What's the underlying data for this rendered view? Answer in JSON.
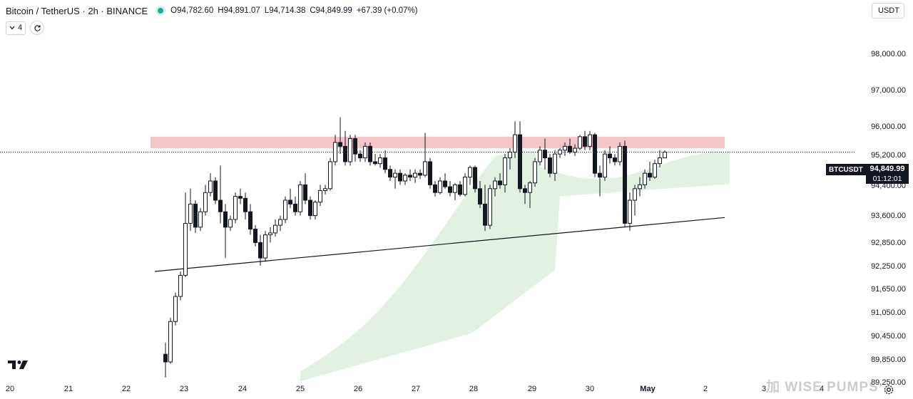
{
  "header": {
    "symbol_title": "Bitcoin / TetherUS · 2h · BINANCE",
    "ohlc": {
      "open_label": "O",
      "open": "94,782.60",
      "high_label": "H",
      "high": "94,891.07",
      "low_label": "L",
      "low": "94,714.38",
      "close_label": "C",
      "close": "94,849.99",
      "change": "+67.39 (+0.07%)"
    },
    "indicator_count": "4",
    "currency": "USDT"
  },
  "price_axis": {
    "ticks": [
      "98,000.00",
      "97,000.00",
      "96,000.00",
      "95,200.00",
      "94,400.00",
      "93,600.00",
      "92,850.00",
      "92,250.00",
      "91,650.00",
      "91,050.00",
      "90,450.00",
      "89,850.00",
      "89,250.00"
    ],
    "last_symbol": "BTCUSDT",
    "last_price": "94,849.99",
    "countdown": "01:12:01"
  },
  "time_axis": {
    "ticks": [
      "20",
      "21",
      "22",
      "23",
      "24",
      "25",
      "26",
      "27",
      "28",
      "29",
      "30",
      "May",
      "2",
      "3",
      "4"
    ]
  },
  "watermark": "加 WISE PUMPS",
  "colors": {
    "up": "#ffffff",
    "down": "#131722",
    "resistance_zone": "#f4c6c8",
    "cloud": "#e3f1e2",
    "trendline": "#131722"
  },
  "icons": {
    "logo": "tradingview-logo-icon",
    "settings": "gear-icon",
    "refresh": "refresh-icon",
    "collapse": "chevron-down-icon"
  },
  "chart_data": {
    "type": "candlestick",
    "symbol": "BTCUSDT",
    "interval": "2h",
    "ylim": [
      88900,
      98800
    ],
    "annotations": {
      "resistance_zone": [
        94950,
        95250
      ],
      "ascending_trendline": [
        91750,
        93150
      ]
    },
    "candles": [
      [
        89600,
        89900,
        89000,
        89400
      ],
      [
        89400,
        90550,
        89350,
        90450
      ],
      [
        90450,
        91200,
        90350,
        91100
      ],
      [
        91100,
        91750,
        91000,
        91650
      ],
      [
        91650,
        93800,
        91600,
        93000
      ],
      [
        93000,
        93900,
        92800,
        93500
      ],
      [
        93500,
        93600,
        92750,
        92900
      ],
      [
        92900,
        93400,
        92800,
        93300
      ],
      [
        93300,
        94000,
        93200,
        93800
      ],
      [
        93800,
        94300,
        93700,
        94100
      ],
      [
        94100,
        94200,
        93500,
        93600
      ],
      [
        93600,
        94500,
        93000,
        93300
      ],
      [
        93300,
        93500,
        92100,
        92900
      ],
      [
        92900,
        93200,
        92800,
        93100
      ],
      [
        93100,
        93800,
        93000,
        93700
      ],
      [
        93700,
        93900,
        93500,
        93650
      ],
      [
        93650,
        93800,
        93100,
        93300
      ],
      [
        93300,
        93500,
        92700,
        92850
      ],
      [
        92850,
        92950,
        92400,
        92500
      ],
      [
        92500,
        92700,
        91900,
        92100
      ],
      [
        92100,
        92800,
        92000,
        92700
      ],
      [
        92700,
        92900,
        92500,
        92750
      ],
      [
        92750,
        93100,
        92650,
        92950
      ],
      [
        92950,
        93200,
        92800,
        93100
      ],
      [
        93100,
        93700,
        93000,
        93600
      ],
      [
        93600,
        93900,
        93400,
        93500
      ],
      [
        93500,
        93700,
        93200,
        93300
      ],
      [
        93300,
        94100,
        93200,
        94000
      ],
      [
        94000,
        94300,
        93500,
        93600
      ],
      [
        93600,
        93700,
        93100,
        93200
      ],
      [
        93200,
        93600,
        93100,
        93550
      ],
      [
        93550,
        94000,
        93450,
        93850
      ],
      [
        93850,
        94000,
        93750,
        93900
      ],
      [
        93900,
        94700,
        93850,
        94600
      ],
      [
        94600,
        95300,
        94500,
        95100
      ],
      [
        95100,
        95750,
        94800,
        95000
      ],
      [
        95000,
        95400,
        94500,
        94600
      ],
      [
        94600,
        95300,
        94500,
        95200
      ],
      [
        95200,
        95300,
        94600,
        94800
      ],
      [
        94800,
        94900,
        94600,
        94700
      ],
      [
        94700,
        95100,
        94600,
        95000
      ],
      [
        95000,
        95100,
        94500,
        94600
      ],
      [
        94600,
        94800,
        94500,
        94550
      ],
      [
        94550,
        94800,
        94450,
        94700
      ],
      [
        94700,
        94900,
        94300,
        94400
      ],
      [
        94400,
        94500,
        94100,
        94200
      ],
      [
        94200,
        94400,
        93900,
        94300
      ],
      [
        94300,
        94400,
        94000,
        94100
      ],
      [
        94100,
        94300,
        94000,
        94250
      ],
      [
        94250,
        94400,
        94100,
        94200
      ],
      [
        94200,
        94400,
        94050,
        94300
      ],
      [
        94300,
        94400,
        94150,
        94250
      ],
      [
        94250,
        95350,
        94200,
        94600
      ],
      [
        94600,
        94700,
        93900,
        94000
      ],
      [
        94000,
        94100,
        93700,
        93800
      ],
      [
        93800,
        94200,
        93750,
        94100
      ],
      [
        94100,
        94300,
        93900,
        93950
      ],
      [
        93950,
        94100,
        93700,
        93800
      ],
      [
        93800,
        94050,
        93600,
        94000
      ],
      [
        94000,
        94100,
        93700,
        93750
      ],
      [
        93750,
        94300,
        93700,
        94200
      ],
      [
        94200,
        94500,
        94000,
        94450
      ],
      [
        94450,
        94500,
        93800,
        93900
      ],
      [
        93900,
        94100,
        93400,
        93500
      ],
      [
        93500,
        94000,
        92800,
        92950
      ],
      [
        92950,
        94000,
        92850,
        93900
      ],
      [
        93900,
        94200,
        93700,
        94100
      ],
      [
        94100,
        94300,
        93900,
        94000
      ],
      [
        94000,
        94800,
        93800,
        94700
      ],
      [
        94700,
        94950,
        94400,
        94850
      ],
      [
        94850,
        95650,
        94700,
        95300
      ],
      [
        95300,
        95650,
        93800,
        93900
      ],
      [
        93900,
        94000,
        93500,
        93800
      ],
      [
        93800,
        94100,
        93400,
        94050
      ],
      [
        94050,
        94700,
        93950,
        94600
      ],
      [
        94600,
        95000,
        94500,
        94900
      ],
      [
        94900,
        95200,
        94400,
        94700
      ],
      [
        94700,
        94800,
        94200,
        94300
      ],
      [
        94300,
        94900,
        94100,
        94800
      ],
      [
        94800,
        94950,
        94700,
        94900
      ],
      [
        94900,
        95100,
        94750,
        95000
      ],
      [
        95000,
        95200,
        94800,
        94850
      ],
      [
        94850,
        95050,
        94750,
        94950
      ],
      [
        94950,
        95300,
        94900,
        95250
      ],
      [
        95250,
        95400,
        94900,
        95000
      ],
      [
        95000,
        95400,
        94900,
        95300
      ],
      [
        95300,
        95350,
        94200,
        94300
      ],
      [
        94300,
        94500,
        93700,
        94200
      ],
      [
        94200,
        94900,
        94100,
        94800
      ],
      [
        94800,
        95000,
        94550,
        94700
      ],
      [
        94700,
        94800,
        94500,
        94600
      ],
      [
        94600,
        95100,
        94500,
        95000
      ],
      [
        95000,
        95150,
        92900,
        93000
      ],
      [
        93000,
        93800,
        92800,
        93600
      ],
      [
        93600,
        94000,
        93200,
        93900
      ],
      [
        93900,
        94200,
        93700,
        94000
      ],
      [
        94000,
        94400,
        93900,
        94300
      ],
      [
        94300,
        94600,
        94100,
        94200
      ],
      [
        94200,
        94650,
        94150,
        94550
      ],
      [
        94550,
        94900,
        94450,
        94700
      ],
      [
        94700,
        94900,
        94700,
        94850
      ]
    ]
  }
}
